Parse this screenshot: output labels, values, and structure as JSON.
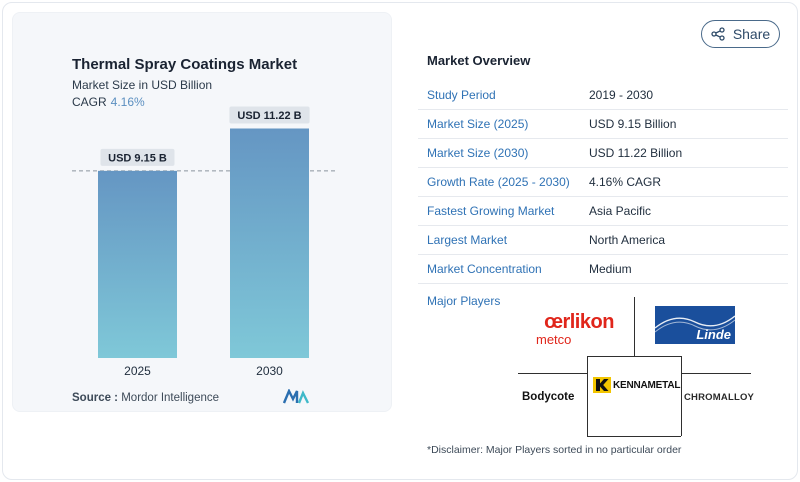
{
  "chart": {
    "title": "Thermal Spray Coatings Market",
    "subtitle": "Market Size in USD Billion",
    "cagr_label": "CAGR",
    "cagr_value": "4.16%",
    "source_label": "Source :",
    "source_value": "Mordor Intelligence"
  },
  "chart_data": {
    "type": "bar",
    "title": "Thermal Spray Coatings Market",
    "ylabel": "Market Size in USD Billion",
    "categories": [
      "2025",
      "2030"
    ],
    "values": [
      9.15,
      11.22
    ],
    "data_labels": [
      "USD 9.15 B",
      "USD 11.22 B"
    ],
    "ylim": [
      0,
      13.2
    ],
    "reference_line": 9.15,
    "bar_color": "#6a9fc8",
    "bar_color_bottom": "#7ec7d9"
  },
  "share": {
    "label": "Share"
  },
  "overview": {
    "title": "Market Overview",
    "rows": [
      {
        "key": "Study Period",
        "value": "2019 - 2030"
      },
      {
        "key": "Market Size (2025)",
        "value": "USD 9.15 Billion"
      },
      {
        "key": "Market Size (2030)",
        "value": "USD 11.22 Billion"
      },
      {
        "key": "Growth Rate (2025 - 2030)",
        "value": "4.16% CAGR"
      },
      {
        "key": "Fastest Growing Market",
        "value": "Asia Pacific"
      },
      {
        "key": "Largest Market",
        "value": "North America"
      },
      {
        "key": "Market Concentration",
        "value": "Medium"
      }
    ]
  },
  "players": {
    "title": "Major Players",
    "oerlikon_top": "œrlikon",
    "oerlikon_bottom": "metco",
    "linde": "Linde",
    "bodycote": "Bodycote",
    "kennametal": "KENNAMETAL",
    "chromalloy": "CHROMALLOY"
  },
  "disclaimer": "*Disclaimer: Major Players sorted in no particular order",
  "colors": {
    "accent_blue": "#2f72b5",
    "cagr_blue": "#5b8fc0",
    "oerlikon_red": "#e0261b",
    "linde_blue": "#1a4f9c",
    "kennametal_yellow": "#f2c500"
  }
}
